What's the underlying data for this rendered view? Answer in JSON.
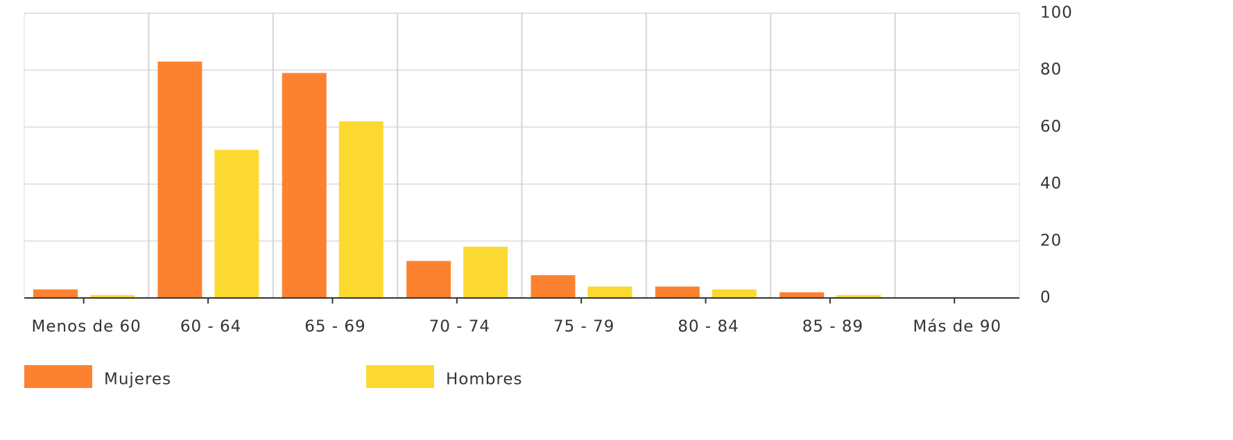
{
  "chart_data": {
    "type": "bar",
    "categories": [
      "Menos de 60",
      "60 - 64",
      "65 - 69",
      "70 - 74",
      "75 - 79",
      "80 - 84",
      "85 - 89",
      "Más de 90"
    ],
    "series": [
      {
        "name": "Mujeres",
        "color": "#fd8230",
        "values": [
          3,
          83,
          79,
          13,
          8,
          4,
          2,
          0
        ]
      },
      {
        "name": "Hombres",
        "color": "#fcd931",
        "values": [
          1,
          52,
          62,
          18,
          4,
          3,
          1,
          0
        ]
      }
    ],
    "ylim": [
      0,
      100
    ],
    "yticks": [
      0,
      20,
      40,
      60,
      80,
      100
    ],
    "grid": true,
    "legend": "bottom"
  }
}
